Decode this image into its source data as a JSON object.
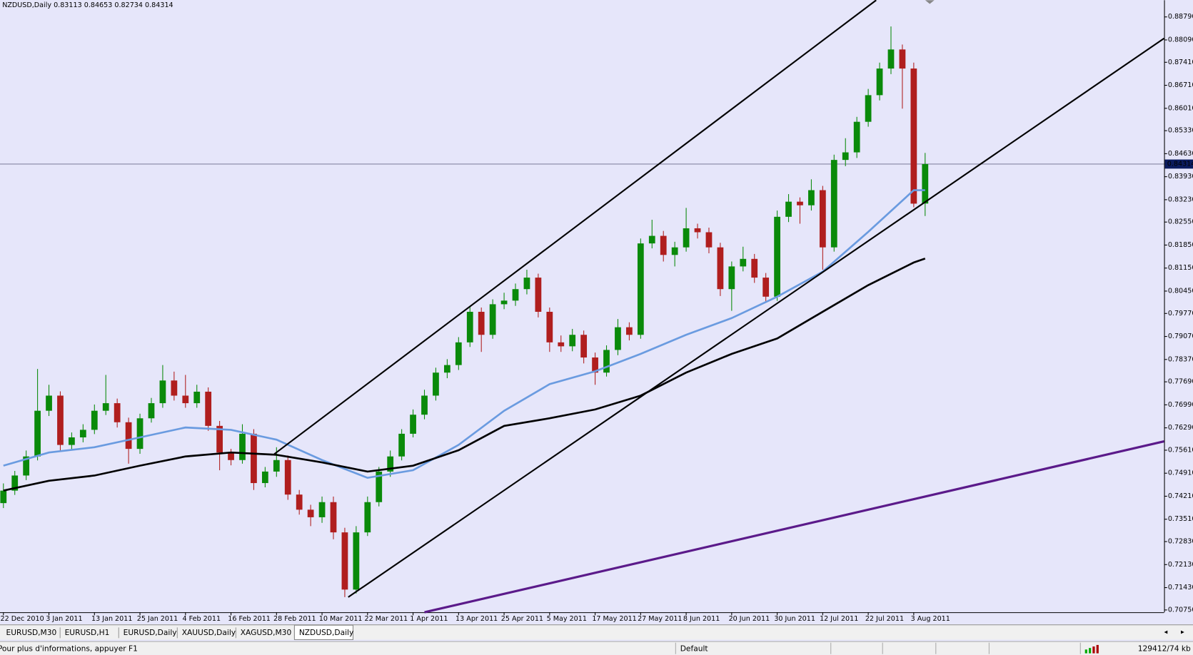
{
  "chart_data": {
    "type": "candlestick",
    "title": "NZDUSD,Daily  0.83113 0.84653 0.82734 0.84314",
    "categories": [
      "22 Dec 2010",
      null,
      null,
      null,
      "3 Jan 2011",
      null,
      null,
      null,
      "13 Jan 2011",
      null,
      null,
      null,
      "25 Jan 2011",
      null,
      null,
      null,
      "4 Feb 2011",
      null,
      null,
      null,
      "16 Feb 2011",
      null,
      null,
      null,
      "28 Feb 2011",
      null,
      null,
      null,
      "10 Mar 2011",
      null,
      null,
      null,
      "22 Mar 2011",
      null,
      null,
      null,
      "1 Apr 2011",
      null,
      null,
      null,
      "13 Apr 2011",
      null,
      null,
      null,
      "25 Apr 2011",
      null,
      null,
      null,
      "5 May 2011",
      null,
      null,
      null,
      "17 May 2011",
      null,
      null,
      null,
      "27 May 2011",
      null,
      null,
      null,
      "8 Jun 2011",
      null,
      null,
      null,
      "20 Jun 2011",
      null,
      null,
      null,
      "30 Jun 2011",
      null,
      null,
      null,
      "12 Jul 2011",
      null,
      null,
      null,
      "22 Jul 2011",
      null,
      null,
      null,
      "3 Aug 2011",
      null
    ],
    "ohlc": [
      [
        0.74,
        0.746,
        0.7385,
        0.7438
      ],
      [
        0.7438,
        0.7498,
        0.7425,
        0.7484
      ],
      [
        0.7484,
        0.756,
        0.747,
        0.7542
      ],
      [
        0.7542,
        0.7808,
        0.753,
        0.7681
      ],
      [
        0.7681,
        0.776,
        0.7665,
        0.7727
      ],
      [
        0.7727,
        0.774,
        0.756,
        0.7577
      ],
      [
        0.7577,
        0.7615,
        0.7562,
        0.76
      ],
      [
        0.76,
        0.764,
        0.7585,
        0.7623
      ],
      [
        0.7623,
        0.77,
        0.761,
        0.7681
      ],
      [
        0.7681,
        0.779,
        0.7668,
        0.7704
      ],
      [
        0.7704,
        0.7718,
        0.763,
        0.7646
      ],
      [
        0.7646,
        0.766,
        0.752,
        0.7565
      ],
      [
        0.7565,
        0.7672,
        0.755,
        0.7658
      ],
      [
        0.7658,
        0.772,
        0.7645,
        0.7704
      ],
      [
        0.7704,
        0.782,
        0.769,
        0.7773
      ],
      [
        0.7773,
        0.78,
        0.7712,
        0.7727
      ],
      [
        0.7727,
        0.779,
        0.769,
        0.7704
      ],
      [
        0.7704,
        0.776,
        0.769,
        0.7739
      ],
      [
        0.7739,
        0.7752,
        0.762,
        0.7635
      ],
      [
        0.7635,
        0.765,
        0.75,
        0.7554
      ],
      [
        0.7554,
        0.7565,
        0.7515,
        0.7531
      ],
      [
        0.7531,
        0.764,
        0.752,
        0.7611
      ],
      [
        0.7611,
        0.7625,
        0.744,
        0.7461
      ],
      [
        0.7461,
        0.751,
        0.7448,
        0.7496
      ],
      [
        0.7496,
        0.757,
        0.748,
        0.7531
      ],
      [
        0.7531,
        0.7545,
        0.741,
        0.7426
      ],
      [
        0.7426,
        0.744,
        0.7365,
        0.738
      ],
      [
        0.738,
        0.7395,
        0.733,
        0.7357
      ],
      [
        0.7357,
        0.742,
        0.734,
        0.7403
      ],
      [
        0.7403,
        0.742,
        0.729,
        0.7311
      ],
      [
        0.7311,
        0.7325,
        0.7114,
        0.7137
      ],
      [
        0.7137,
        0.733,
        0.7125,
        0.7311
      ],
      [
        0.7311,
        0.742,
        0.73,
        0.7403
      ],
      [
        0.7403,
        0.751,
        0.739,
        0.7496
      ],
      [
        0.7496,
        0.756,
        0.748,
        0.7542
      ],
      [
        0.7542,
        0.7625,
        0.753,
        0.7611
      ],
      [
        0.7611,
        0.7685,
        0.76,
        0.7669
      ],
      [
        0.7669,
        0.7745,
        0.7655,
        0.7727
      ],
      [
        0.7727,
        0.7812,
        0.7712,
        0.7797
      ],
      [
        0.7797,
        0.7838,
        0.778,
        0.782
      ],
      [
        0.782,
        0.7905,
        0.7805,
        0.7889
      ],
      [
        0.7889,
        0.8,
        0.7875,
        0.7982
      ],
      [
        0.7982,
        0.7995,
        0.786,
        0.7912
      ],
      [
        0.7912,
        0.802,
        0.79,
        0.8005
      ],
      [
        0.8005,
        0.804,
        0.799,
        0.8016
      ],
      [
        0.8016,
        0.8068,
        0.8,
        0.8051
      ],
      [
        0.8051,
        0.811,
        0.8035,
        0.8086
      ],
      [
        0.8086,
        0.8098,
        0.7965,
        0.7982
      ],
      [
        0.7982,
        0.7995,
        0.786,
        0.7889
      ],
      [
        0.7889,
        0.791,
        0.786,
        0.7877
      ],
      [
        0.7877,
        0.793,
        0.7862,
        0.7912
      ],
      [
        0.7912,
        0.7925,
        0.7825,
        0.7843
      ],
      [
        0.7843,
        0.7858,
        0.776,
        0.7797
      ],
      [
        0.7797,
        0.788,
        0.7785,
        0.7866
      ],
      [
        0.7866,
        0.796,
        0.785,
        0.7935
      ],
      [
        0.7935,
        0.795,
        0.7895,
        0.7912
      ],
      [
        0.7912,
        0.8205,
        0.79,
        0.819
      ],
      [
        0.819,
        0.8262,
        0.8175,
        0.8213
      ],
      [
        0.8213,
        0.8228,
        0.8135,
        0.8155
      ],
      [
        0.8155,
        0.8195,
        0.812,
        0.8178
      ],
      [
        0.8178,
        0.8298,
        0.8165,
        0.8236
      ],
      [
        0.8236,
        0.825,
        0.8205,
        0.8224
      ],
      [
        0.8224,
        0.8238,
        0.816,
        0.8178
      ],
      [
        0.8178,
        0.8192,
        0.803,
        0.8051
      ],
      [
        0.8051,
        0.8135,
        0.7985,
        0.812
      ],
      [
        0.812,
        0.818,
        0.8105,
        0.8143
      ],
      [
        0.8143,
        0.8158,
        0.807,
        0.8086
      ],
      [
        0.8086,
        0.81,
        0.801,
        0.8028
      ],
      [
        0.8028,
        0.829,
        0.8015,
        0.8271
      ],
      [
        0.8271,
        0.834,
        0.8255,
        0.8317
      ],
      [
        0.8317,
        0.833,
        0.825,
        0.8306
      ],
      [
        0.8306,
        0.8385,
        0.829,
        0.8352
      ],
      [
        0.8352,
        0.8365,
        0.811,
        0.8178
      ],
      [
        0.8178,
        0.846,
        0.8165,
        0.8444
      ],
      [
        0.8444,
        0.851,
        0.8425,
        0.8467
      ],
      [
        0.8467,
        0.8575,
        0.845,
        0.856
      ],
      [
        0.856,
        0.866,
        0.8545,
        0.8641
      ],
      [
        0.8641,
        0.874,
        0.8625,
        0.8722
      ],
      [
        0.8722,
        0.885,
        0.8705,
        0.878
      ],
      [
        0.878,
        0.8795,
        0.86,
        0.8722
      ],
      [
        0.8722,
        0.874,
        0.83,
        0.8311
      ],
      [
        0.83113,
        0.84653,
        0.82734,
        0.84314
      ]
    ],
    "up_color": "#0a8a0a",
    "down_color": "#b01e1e",
    "lines": [
      {
        "color": "#6a9be0",
        "width": 2.5,
        "x": [
          0,
          4,
          8,
          12,
          16,
          20,
          24,
          28,
          32,
          36,
          40,
          44,
          48,
          52,
          56,
          60,
          64,
          68,
          72,
          76,
          80,
          81
        ],
        "values": [
          0.7514,
          0.7554,
          0.757,
          0.76,
          0.763,
          0.7623,
          0.7593,
          0.7531,
          0.7477,
          0.75,
          0.7577,
          0.7681,
          0.7762,
          0.7801,
          0.7854,
          0.7912,
          0.7963,
          0.8028,
          0.8104,
          0.8225,
          0.8352,
          0.8352
        ]
      },
      {
        "color": "#000000",
        "width": 2.5,
        "x": [
          0,
          4,
          8,
          12,
          16,
          20,
          24,
          28,
          32,
          36,
          40,
          44,
          48,
          52,
          56,
          60,
          64,
          68,
          72,
          76,
          80,
          81
        ],
        "values": [
          0.7438,
          0.7468,
          0.7484,
          0.7514,
          0.7542,
          0.7554,
          0.7547,
          0.7524,
          0.7496,
          0.7514,
          0.7561,
          0.7635,
          0.7658,
          0.7685,
          0.7727,
          0.7797,
          0.7854,
          0.7901,
          0.7982,
          0.8063,
          0.8132,
          0.8144
        ]
      },
      {
        "color": "#000000",
        "width": 2,
        "x": [
          23.8,
          76.7
        ],
        "values": [
          0.7549,
          0.893
        ]
      },
      {
        "color": "#000000",
        "width": 2,
        "x": [
          30.3,
          102
        ],
        "values": [
          0.7114,
          0.8814
        ]
      },
      {
        "color": "#5b1a8a",
        "width": 3,
        "x": [
          37,
          102
        ],
        "values": [
          0.7068,
          0.7588
        ]
      }
    ],
    "current_price": 0.84314,
    "xlim": [
      -0.3,
      102
    ],
    "ylim": [
      0.7068,
      0.893
    ],
    "yticks": [
      {
        "value": 0.8879,
        "label": "0.88790"
      },
      {
        "value": 0.8809,
        "label": "0.88090"
      },
      {
        "value": 0.8741,
        "label": "0.87410"
      },
      {
        "value": 0.8671,
        "label": "0.86710"
      },
      {
        "value": 0.8601,
        "label": "0.86010"
      },
      {
        "value": 0.8533,
        "label": "0.85330"
      },
      {
        "value": 0.8463,
        "label": "0.84630"
      },
      {
        "value": 0.8393,
        "label": "0.83930"
      },
      {
        "value": 0.8323,
        "label": "0.83230"
      },
      {
        "value": 0.8255,
        "label": "0.82550"
      },
      {
        "value": 0.8185,
        "label": "0.81850"
      },
      {
        "value": 0.8115,
        "label": "0.81150"
      },
      {
        "value": 0.8045,
        "label": "0.80450"
      },
      {
        "value": 0.7977,
        "label": "0.79770"
      },
      {
        "value": 0.7907,
        "label": "0.79070"
      },
      {
        "value": 0.7837,
        "label": "0.78370"
      },
      {
        "value": 0.7769,
        "label": "0.77690"
      },
      {
        "value": 0.7699,
        "label": "0.76990"
      },
      {
        "value": 0.7629,
        "label": "0.76290"
      },
      {
        "value": 0.7561,
        "label": "0.75610"
      },
      {
        "value": 0.7491,
        "label": "0.74910"
      },
      {
        "value": 0.7421,
        "label": "0.74210"
      },
      {
        "value": 0.7351,
        "label": "0.73510"
      },
      {
        "value": 0.7283,
        "label": "0.72830"
      },
      {
        "value": 0.7213,
        "label": "0.72130"
      },
      {
        "value": 0.7143,
        "label": "0.71430"
      },
      {
        "value": 0.7075,
        "label": "0.70750"
      }
    ]
  },
  "tabs": [
    {
      "label": "EURUSD,M30",
      "active": false
    },
    {
      "label": "EURUSD,H1",
      "active": false
    },
    {
      "label": "EURUSD,Daily",
      "active": false
    },
    {
      "label": "XAUUSD,Daily",
      "active": false
    },
    {
      "label": "XAGUSD,M30",
      "active": false
    },
    {
      "label": "NZDUSD,Daily",
      "active": true
    }
  ],
  "status_bar": {
    "help": "Pour plus d'informations, appuyer F1",
    "profile": "Default",
    "traffic": "129412/74 kb"
  }
}
